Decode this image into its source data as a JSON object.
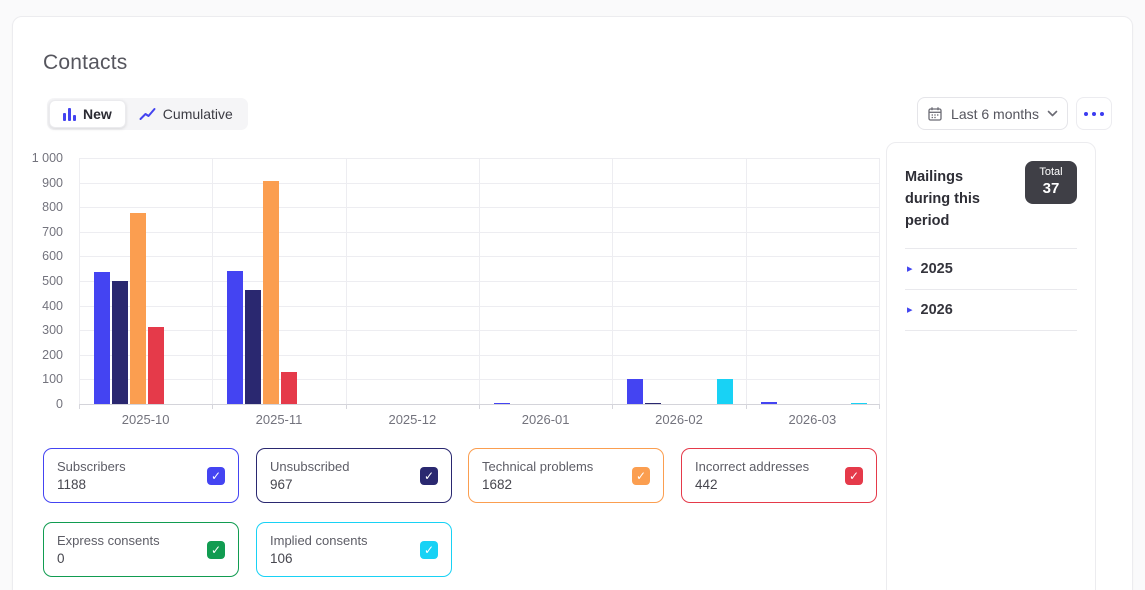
{
  "header": {
    "title": "Contacts"
  },
  "view_toggle": {
    "new_label": "New",
    "cumulative_label": "Cumulative"
  },
  "controls": {
    "period_label": "Last 6 months"
  },
  "chart_data": {
    "type": "bar",
    "categories": [
      "2025-10",
      "2025-11",
      "2025-12",
      "2026-01",
      "2026-02",
      "2026-03"
    ],
    "series": [
      {
        "name": "Subscribers",
        "color": "#4444f2",
        "values": [
          537,
          542,
          0,
          2,
          100,
          7
        ]
      },
      {
        "name": "Unsubscribed",
        "color": "#2a2870",
        "values": [
          500,
          462,
          0,
          0,
          5,
          0
        ]
      },
      {
        "name": "Technical problems",
        "color": "#fb9e50",
        "values": [
          775,
          907,
          0,
          0,
          0,
          0
        ]
      },
      {
        "name": "Incorrect addresses",
        "color": "#e53a4a",
        "values": [
          312,
          130,
          0,
          0,
          0,
          0
        ]
      },
      {
        "name": "Express consents",
        "color": "#119c51",
        "values": [
          0,
          0,
          0,
          0,
          0,
          0
        ]
      },
      {
        "name": "Implied consents",
        "color": "#18d2f5",
        "values": [
          0,
          0,
          0,
          0,
          100,
          6
        ]
      }
    ],
    "ylim": [
      0,
      1000
    ],
    "ytick_step": 100,
    "ytick_labels": [
      "0",
      "100",
      "200",
      "300",
      "400",
      "500",
      "600",
      "700",
      "800",
      "900",
      "1 000"
    ],
    "grid": true,
    "legend_position": "bottom"
  },
  "legend": {
    "items": [
      {
        "label": "Subscribers",
        "value": "1188",
        "color": "#4444f2",
        "checked": true
      },
      {
        "label": "Unsubscribed",
        "value": "967",
        "color": "#2a2870",
        "checked": true
      },
      {
        "label": "Technical problems",
        "value": "1682",
        "color": "#fb9e50",
        "checked": true
      },
      {
        "label": "Incorrect addresses",
        "value": "442",
        "color": "#e53a4a",
        "checked": true
      },
      {
        "label": "Express consents",
        "value": "0",
        "color": "#119c51",
        "checked": true
      },
      {
        "label": "Implied consents",
        "value": "106",
        "color": "#18d2f5",
        "checked": true
      }
    ]
  },
  "sidebar": {
    "title": "Mailings during this period",
    "total_label": "Total",
    "total_value": "37",
    "years": [
      {
        "label": "2025"
      },
      {
        "label": "2026"
      }
    ]
  }
}
